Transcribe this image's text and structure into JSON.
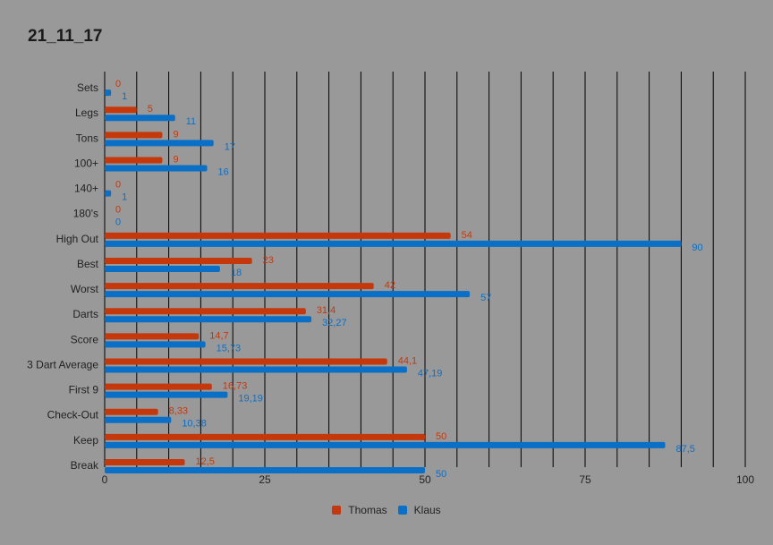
{
  "chart_data": {
    "type": "bar",
    "orientation": "horizontal",
    "title": "21_11_17",
    "categories": [
      "Sets",
      "Legs",
      "Tons",
      "100+",
      "140+",
      "180's",
      "High Out",
      "Best",
      "Worst",
      "Darts",
      "Score",
      "3 Dart Average",
      "First 9",
      "Check-Out",
      "Keep",
      "Break"
    ],
    "series": [
      {
        "name": "Thomas",
        "color": "#c4380c",
        "values": [
          0,
          5,
          9,
          9,
          0,
          0,
          54,
          23,
          42,
          31.4,
          14.7,
          44.1,
          16.73,
          8.33,
          50,
          12.5
        ],
        "labels": [
          "0",
          "5",
          "9",
          "9",
          "0",
          "0",
          "54",
          "23",
          "42",
          "31,4",
          "14,7",
          "44,1",
          "16,73",
          "8,33",
          "50",
          "12,5"
        ]
      },
      {
        "name": "Klaus",
        "color": "#0a6fc6",
        "values": [
          1,
          11,
          17,
          16,
          1,
          0,
          90,
          18,
          57,
          32.27,
          15.73,
          47.19,
          19.19,
          10.38,
          87.5,
          50
        ],
        "labels": [
          "1",
          "11",
          "17",
          "16",
          "1",
          "0",
          "90",
          "18",
          "57",
          "32,27",
          "15,73",
          "47,19",
          "19,19",
          "10,38",
          "87,5",
          "50"
        ]
      }
    ],
    "xlim": [
      0,
      100
    ],
    "xticks": [
      0,
      25,
      50,
      75,
      100
    ],
    "x_tick_labels": [
      "0",
      "25",
      "50",
      "75",
      "100"
    ],
    "gridlines": [
      0,
      5,
      10,
      15,
      20,
      25,
      30,
      35,
      40,
      45,
      50,
      55,
      60,
      65,
      70,
      75,
      80,
      85,
      90,
      95,
      100
    ],
    "grid": true,
    "legend_position": "bottom"
  }
}
